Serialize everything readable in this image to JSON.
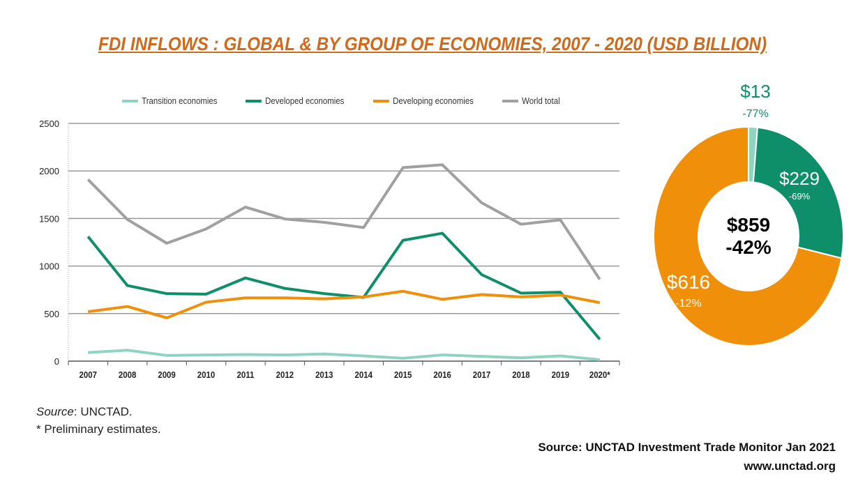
{
  "title": "FDI INFLOWS : GLOBAL & BY GROUP OF ECONOMIES, 2007 - 2020 (USD BILLION)",
  "chart_data": [
    {
      "type": "line",
      "categories": [
        "2007",
        "2008",
        "2009",
        "2010",
        "2011",
        "2012",
        "2013",
        "2014",
        "2015",
        "2016",
        "2017",
        "2018",
        "2019",
        "2020*"
      ],
      "ylim": [
        0,
        2500
      ],
      "yticks": [
        "0",
        "500",
        "1000",
        "1500",
        "2000",
        "2500"
      ],
      "grid": true,
      "legend_position": "top",
      "series": [
        {
          "name": "Transition economies",
          "color": "#8fd3c1",
          "values": [
            90,
            115,
            60,
            65,
            70,
            65,
            75,
            55,
            30,
            65,
            50,
            35,
            55,
            15
          ]
        },
        {
          "name": "Developed economies",
          "color": "#0e8f6a",
          "values": [
            1310,
            795,
            710,
            705,
            875,
            765,
            710,
            670,
            1270,
            1345,
            910,
            715,
            725,
            230
          ]
        },
        {
          "name": "Developing economies",
          "color": "#f0900a",
          "values": [
            520,
            575,
            455,
            620,
            665,
            665,
            655,
            675,
            735,
            650,
            700,
            675,
            695,
            615
          ]
        },
        {
          "name": "World total",
          "color": "#a0a0a0",
          "values": [
            1910,
            1490,
            1240,
            1390,
            1620,
            1495,
            1460,
            1405,
            2035,
            2065,
            1665,
            1440,
            1485,
            860
          ]
        }
      ]
    },
    {
      "type": "pie",
      "donut": true,
      "center_label": {
        "value": "$859",
        "change": "-42%"
      },
      "slices": [
        {
          "value": 13,
          "label": "$13",
          "change": "-77%",
          "color": "#8fd3c1"
        },
        {
          "value": 229,
          "label": "$229",
          "change": "-69%",
          "color": "#0e8f6a"
        },
        {
          "value": 616,
          "label": "$616",
          "change": "-12%",
          "color": "#f0900a"
        }
      ]
    }
  ],
  "notes": {
    "source_label": "Source",
    "source_value": ": UNCTAD.",
    "preliminary": "* Preliminary estimates."
  },
  "footer": {
    "source": "Source:  UNCTAD Investment Trade Monitor Jan 2021",
    "url": "www.unctad.org"
  }
}
